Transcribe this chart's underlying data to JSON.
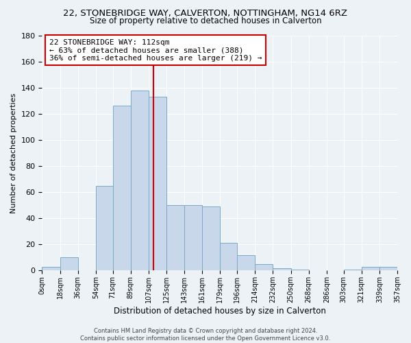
{
  "title": "22, STONEBRIDGE WAY, CALVERTON, NOTTINGHAM, NG14 6RZ",
  "subtitle": "Size of property relative to detached houses in Calverton",
  "xlabel": "Distribution of detached houses by size in Calverton",
  "ylabel": "Number of detached properties",
  "bar_color": "#c8d8ea",
  "bar_edge_color": "#7aaac8",
  "bin_edges": [
    0,
    18,
    36,
    54,
    71,
    89,
    107,
    125,
    143,
    161,
    179,
    196,
    214,
    232,
    250,
    268,
    286,
    303,
    321,
    339,
    357
  ],
  "bar_heights": [
    3,
    10,
    0,
    65,
    126,
    138,
    133,
    50,
    50,
    49,
    21,
    12,
    5,
    2,
    1,
    0,
    0,
    1,
    3,
    3
  ],
  "tick_labels": [
    "0sqm",
    "18sqm",
    "36sqm",
    "54sqm",
    "71sqm",
    "89sqm",
    "107sqm",
    "125sqm",
    "143sqm",
    "161sqm",
    "179sqm",
    "196sqm",
    "214sqm",
    "232sqm",
    "250sqm",
    "268sqm",
    "286sqm",
    "303sqm",
    "321sqm",
    "339sqm",
    "357sqm"
  ],
  "vline_x": 112,
  "vline_color": "#cc0000",
  "ylim": [
    0,
    180
  ],
  "yticks": [
    0,
    20,
    40,
    60,
    80,
    100,
    120,
    140,
    160,
    180
  ],
  "annotation_line1": "22 STONEBRIDGE WAY: 112sqm",
  "annotation_line2": "← 63% of detached houses are smaller (388)",
  "annotation_line3": "36% of semi-detached houses are larger (219) →",
  "annotation_box_color": "#ffffff",
  "annotation_box_edge": "#cc0000",
  "footer_line1": "Contains HM Land Registry data © Crown copyright and database right 2024.",
  "footer_line2": "Contains public sector information licensed under the Open Government Licence v3.0.",
  "background_color": "#edf2f7",
  "grid_color": "#ffffff"
}
